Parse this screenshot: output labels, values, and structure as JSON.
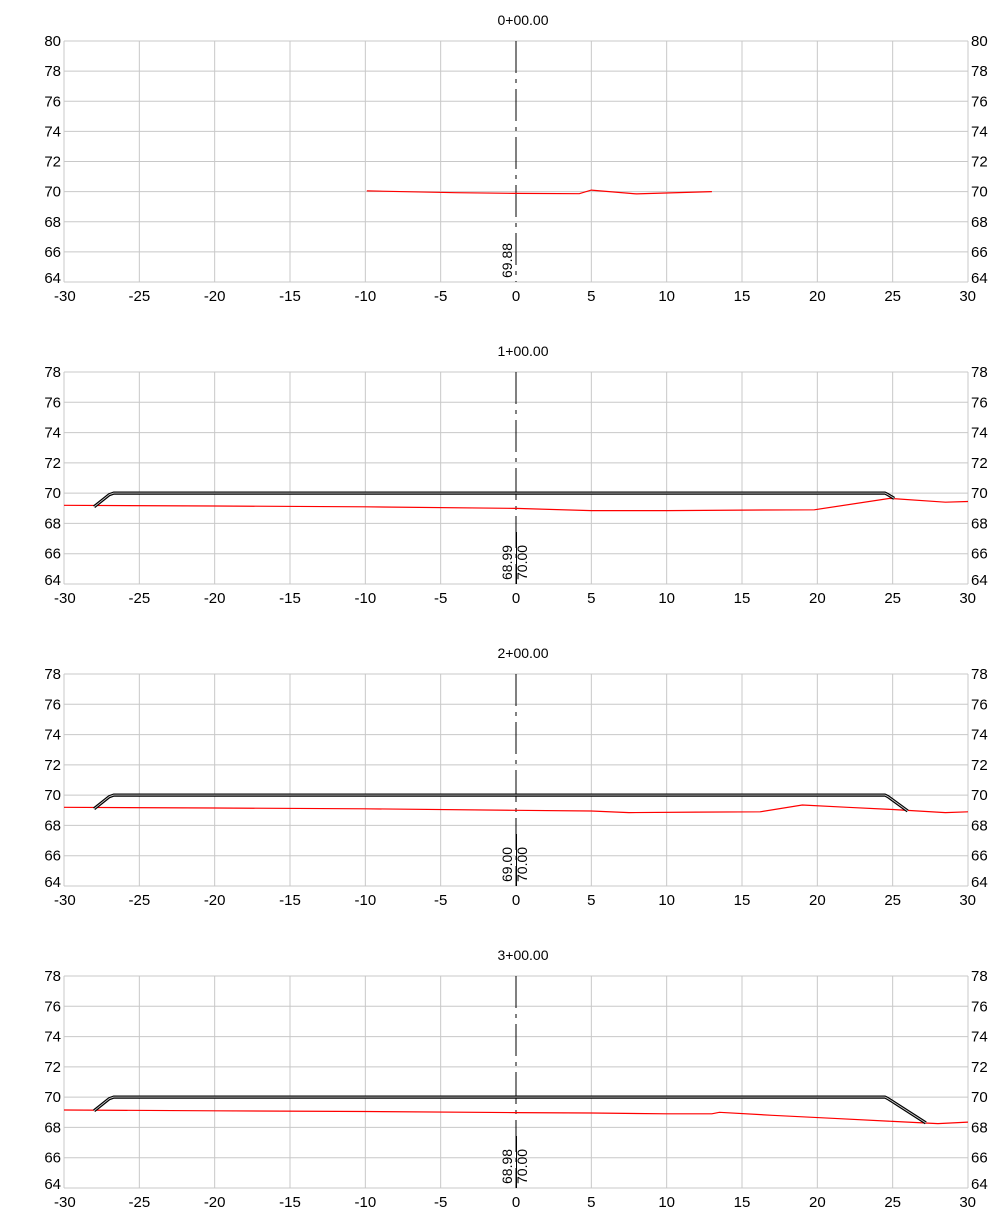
{
  "colors": {
    "grid": "#c8c8c8",
    "ground": "#ff0000",
    "design": "#000000",
    "centerline": "#000000",
    "background": "#ffffff"
  },
  "chart_data": [
    {
      "type": "line",
      "title": "0+00.00",
      "xlabel": "",
      "ylabel": "",
      "xlim": [
        -30,
        30
      ],
      "ylim": [
        64,
        80
      ],
      "xticks": [
        -30,
        -25,
        -20,
        -15,
        -10,
        -5,
        0,
        5,
        10,
        15,
        20,
        25,
        30
      ],
      "yticks": [
        64,
        66,
        68,
        70,
        72,
        74,
        76,
        78,
        80
      ],
      "grid": true,
      "centerline_labels": [
        "69.88"
      ],
      "series": [
        {
          "role": "ground",
          "x": [
            -9.9,
            -4,
            0,
            4.2,
            5,
            8,
            13
          ],
          "y": [
            70.05,
            69.93,
            69.88,
            69.86,
            70.1,
            69.85,
            70.0
          ]
        }
      ]
    },
    {
      "type": "line",
      "title": "1+00.00",
      "xlabel": "",
      "ylabel": "",
      "xlim": [
        -30,
        30
      ],
      "ylim": [
        64,
        78
      ],
      "xticks": [
        -30,
        -25,
        -20,
        -15,
        -10,
        -5,
        0,
        5,
        10,
        15,
        20,
        25,
        30
      ],
      "yticks": [
        64,
        66,
        68,
        70,
        72,
        74,
        76,
        78
      ],
      "grid": true,
      "centerline_labels": [
        "68.99",
        "70.00"
      ],
      "series": [
        {
          "role": "ground",
          "x": [
            -30,
            -20,
            -10,
            0,
            5,
            10,
            15,
            19.8,
            24.8,
            28.5,
            30
          ],
          "y": [
            69.2,
            69.15,
            69.1,
            68.99,
            68.85,
            68.85,
            68.88,
            68.9,
            69.65,
            69.4,
            69.45
          ]
        },
        {
          "role": "design",
          "x": [
            -28,
            -27,
            -26.7,
            0,
            24.5,
            24.7,
            25.1
          ],
          "y": [
            69.1,
            69.9,
            70.0,
            70.0,
            70.0,
            69.9,
            69.65
          ]
        }
      ]
    },
    {
      "type": "line",
      "title": "2+00.00",
      "xlabel": "",
      "ylabel": "",
      "xlim": [
        -30,
        30
      ],
      "ylim": [
        64,
        78
      ],
      "xticks": [
        -30,
        -25,
        -20,
        -15,
        -10,
        -5,
        0,
        5,
        10,
        15,
        20,
        25,
        30
      ],
      "yticks": [
        64,
        66,
        68,
        70,
        72,
        74,
        76,
        78
      ],
      "grid": true,
      "centerline_labels": [
        "69.00",
        "70.00"
      ],
      "series": [
        {
          "role": "ground",
          "x": [
            -30,
            -20,
            -10,
            0,
            5,
            7.5,
            12,
            16.2,
            19,
            22,
            25,
            28.5,
            30
          ],
          "y": [
            69.2,
            69.15,
            69.1,
            69.0,
            68.95,
            68.85,
            68.88,
            68.9,
            69.35,
            69.2,
            69.05,
            68.85,
            68.9
          ]
        },
        {
          "role": "design",
          "x": [
            -28,
            -27,
            -26.7,
            0,
            24.5,
            24.7,
            26
          ],
          "y": [
            69.1,
            69.9,
            70.0,
            70.0,
            70.0,
            69.9,
            68.95
          ]
        }
      ]
    },
    {
      "type": "line",
      "title": "3+00.00",
      "xlabel": "",
      "ylabel": "",
      "xlim": [
        -30,
        30
      ],
      "ylim": [
        64,
        78
      ],
      "xticks": [
        -30,
        -25,
        -20,
        -15,
        -10,
        -5,
        0,
        5,
        10,
        15,
        20,
        25,
        30
      ],
      "yticks": [
        64,
        66,
        68,
        70,
        72,
        74,
        76,
        78
      ],
      "grid": true,
      "centerline_labels": [
        "68.98",
        "70.00"
      ],
      "series": [
        {
          "role": "ground",
          "x": [
            -30,
            -20,
            -10,
            0,
            5,
            10,
            13,
            13.5,
            17,
            21,
            25,
            28,
            30
          ],
          "y": [
            69.15,
            69.1,
            69.05,
            68.98,
            68.95,
            68.9,
            68.9,
            69.0,
            68.8,
            68.6,
            68.4,
            68.25,
            68.35
          ]
        },
        {
          "role": "design",
          "x": [
            -28,
            -27,
            -26.7,
            0,
            24.5,
            24.7,
            27.2
          ],
          "y": [
            69.1,
            69.9,
            70.0,
            70.0,
            70.0,
            69.9,
            68.3
          ]
        }
      ]
    }
  ]
}
